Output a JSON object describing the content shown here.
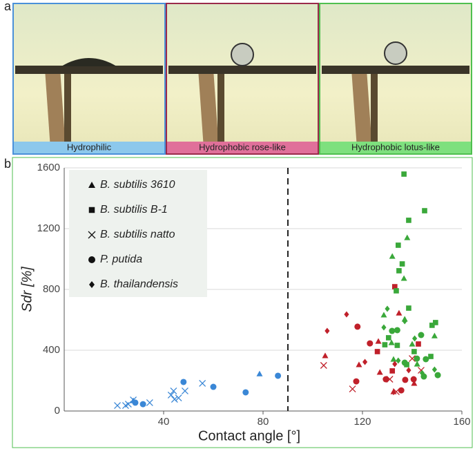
{
  "panel_a": {
    "letter": "a",
    "images": [
      {
        "label": "Hydrophilic",
        "color": "#4a90d9",
        "bar": "#8cc8ec"
      },
      {
        "label": "Hydrophobic rose-like",
        "color": "#9a2a4a",
        "bar": "#e0709a"
      },
      {
        "label": "Hydrophobic lotus-like",
        "color": "#4fbf4f",
        "bar": "#7ee07e"
      }
    ]
  },
  "chart_data": {
    "type": "scatter",
    "panel_label": "b",
    "x_label": "Contact angle [°]",
    "y_label": "Sdr [%]",
    "xlim": [
      0,
      160
    ],
    "ylim": [
      0,
      1600
    ],
    "xticks": [
      40,
      80,
      120,
      160
    ],
    "yticks": [
      0,
      400,
      800,
      1200,
      1600
    ],
    "grid": true,
    "threshold_x": 90,
    "series": [
      {
        "name": "B. subtilis 3610",
        "marker": "triangle",
        "x": [
          78.6,
          27.8,
          105,
          118.6,
          126.4,
          127,
          134.7,
          132.5,
          140.8,
          132,
          138,
          136.7,
          128.6,
          131.7,
          132.5,
          140,
          149,
          142,
          137
        ],
        "values": [
          245,
          68,
          364,
          305,
          459,
          255,
          645,
          127,
          182,
          1018,
          1141,
          873,
          632,
          450,
          341,
          441,
          495,
          309,
          605
        ],
        "colors": [
          "#3a87d6",
          "#3a87d6",
          "#c0202a",
          "#c0202a",
          "#c0202a",
          "#c0202a",
          "#c0202a",
          "#c0202a",
          "#c0202a",
          "#3aa83a",
          "#3aa83a",
          "#3aa83a",
          "#3aa83a",
          "#3aa83a",
          "#3aa83a",
          "#3aa83a",
          "#3aa83a",
          "#3aa83a",
          "#3aa83a"
        ]
      },
      {
        "name": "B. subtilis B-1",
        "marker": "square",
        "x": [
          133,
          126,
          132,
          142.5,
          136.7,
          145,
          138.6,
          134.4,
          136,
          134.7,
          133.6,
          138.6,
          130.5,
          147.5,
          149.4,
          148,
          129,
          137.8,
          140.8,
          134
        ],
        "values": [
          818,
          391,
          264,
          441,
          1559,
          1318,
          1255,
          1091,
          968,
          923,
          791,
          677,
          482,
          359,
          582,
          564,
          436,
          305,
          391,
          432
        ],
        "colors": [
          "#c0202a",
          "#c0202a",
          "#c0202a",
          "#c0202a",
          "#3aa83a",
          "#3aa83a",
          "#3aa83a",
          "#3aa83a",
          "#3aa83a",
          "#3aa83a",
          "#3aa83a",
          "#3aa83a",
          "#3aa83a",
          "#3aa83a",
          "#3aa83a",
          "#3aa83a",
          "#3aa83a",
          "#3aa83a",
          "#3aa83a",
          "#3aa83a"
        ]
      },
      {
        "name": "B. subtilis natto",
        "marker": "cross",
        "x": [
          21.4,
          24.7,
          25.8,
          27.8,
          34.4,
          43,
          44,
          46,
          48.6,
          55.6,
          44.4,
          104.4,
          116,
          131,
          133.6,
          143.6,
          140
        ],
        "values": [
          36,
          36,
          45,
          73,
          55,
          105,
          132,
          86,
          132,
          182,
          77,
          300,
          145,
          209,
          127,
          268,
          345
        ],
        "colors": [
          "#3a87d6",
          "#3a87d6",
          "#3a87d6",
          "#3a87d6",
          "#3a87d6",
          "#3a87d6",
          "#3a87d6",
          "#3a87d6",
          "#3a87d6",
          "#3a87d6",
          "#3a87d6",
          "#c0202a",
          "#c0202a",
          "#c0202a",
          "#c0202a",
          "#c0202a",
          "#c0202a"
        ]
      },
      {
        "name": "P. putida",
        "marker": "circle",
        "x": [
          48,
          60,
          73,
          86,
          28.6,
          31.7,
          118,
          123,
          117.5,
          129.4,
          135.6,
          137.2,
          140.6,
          134,
          131.9,
          141.9,
          145.5,
          143.6,
          150.3,
          137,
          144.7
        ],
        "values": [
          191,
          159,
          123,
          232,
          55,
          45,
          555,
          445,
          195,
          209,
          136,
          205,
          209,
          532,
          527,
          345,
          341,
          500,
          236,
          318,
          227
        ],
        "colors": [
          "#3a87d6",
          "#3a87d6",
          "#3a87d6",
          "#3a87d6",
          "#3a87d6",
          "#3a87d6",
          "#c0202a",
          "#c0202a",
          "#c0202a",
          "#c0202a",
          "#c0202a",
          "#c0202a",
          "#c0202a",
          "#3aa83a",
          "#3aa83a",
          "#3aa83a",
          "#3aa83a",
          "#3aa83a",
          "#3aa83a",
          "#3aa83a",
          "#3aa83a"
        ]
      },
      {
        "name": "B. thailandensis",
        "marker": "diamond",
        "x": [
          105.8,
          113.6,
          121,
          133,
          138.6,
          130,
          128.6,
          137,
          149,
          144,
          134.4,
          141
        ],
        "values": [
          527,
          636,
          323,
          309,
          268,
          673,
          550,
          591,
          273,
          250,
          332,
          477
        ],
        "colors": [
          "#c0202a",
          "#c0202a",
          "#c0202a",
          "#c0202a",
          "#c0202a",
          "#3aa83a",
          "#3aa83a",
          "#3aa83a",
          "#3aa83a",
          "#3aa83a",
          "#3aa83a",
          "#3aa83a"
        ]
      }
    ]
  }
}
